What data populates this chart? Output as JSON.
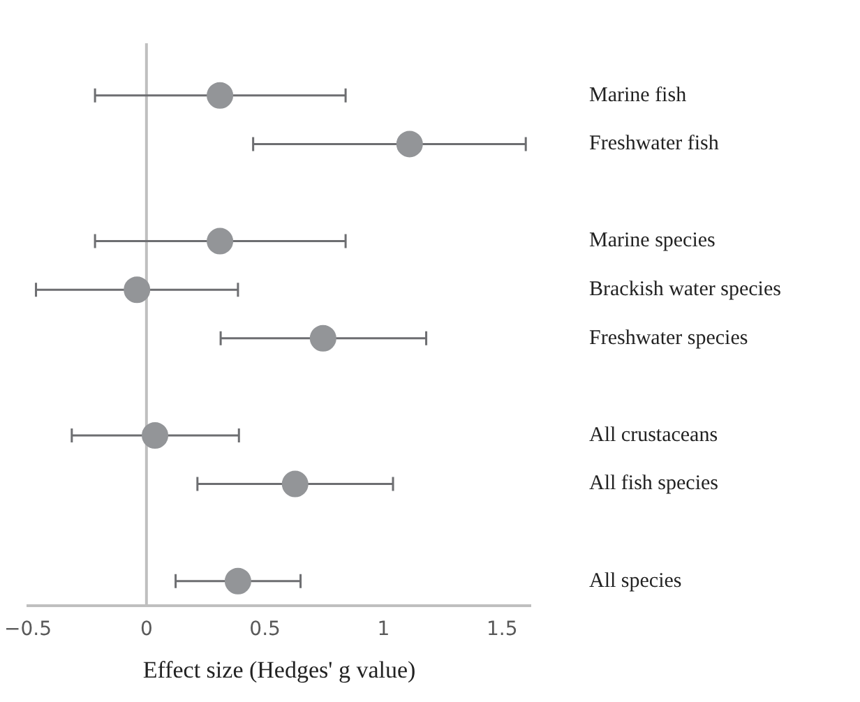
{
  "chart_data": {
    "type": "scatter",
    "orientation": "horizontal",
    "xlabel": "Effect size (Hedges' g value)",
    "categories": [
      "Marine fish",
      "Freshwater fish",
      null,
      "Marine species",
      "Brackish water species",
      "Freshwater species",
      null,
      "All crustaceans",
      "All fish species",
      null,
      "All species"
    ],
    "values": [
      0.31,
      1.11,
      null,
      0.31,
      -0.04,
      0.745,
      null,
      0.036,
      0.627,
      null,
      0.386
    ],
    "errors": [
      [
        -0.217,
        0.84
      ],
      [
        0.45,
        1.6
      ],
      null,
      [
        -0.217,
        0.84
      ],
      [
        -0.466,
        0.386
      ],
      [
        0.313,
        1.18
      ],
      null,
      [
        -0.315,
        0.39
      ],
      [
        0.215,
        1.04
      ],
      null,
      [
        0.123,
        0.65
      ]
    ],
    "color": "#939598",
    "marker": "circle",
    "xlim": [
      -0.5,
      1.62
    ],
    "xticks": [
      -0.5,
      0,
      0.5,
      1,
      1.5
    ],
    "grid": false,
    "legend": false,
    "ref_lines": [
      {
        "axis": "x",
        "value": 0,
        "color": "#bfbfbf"
      }
    ]
  }
}
